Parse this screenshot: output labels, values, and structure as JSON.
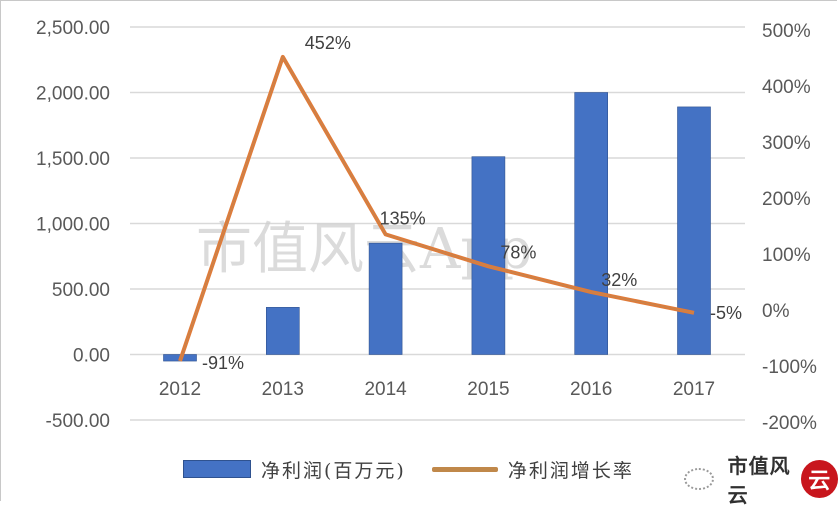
{
  "chart_data": {
    "type": "bar+line",
    "title": "",
    "categories": [
      "2012",
      "2013",
      "2014",
      "2015",
      "2016",
      "2017"
    ],
    "series": [
      {
        "name": "净利润(百万元)",
        "type": "bar",
        "axis": "left",
        "color": "#4472c4",
        "values": [
          -50,
          360,
          850,
          1510,
          2000,
          1890
        ]
      },
      {
        "name": "净利润增长率",
        "type": "line",
        "axis": "right",
        "color": "#e07b39",
        "values": [
          -91,
          452,
          135,
          78,
          32,
          -5
        ],
        "data_labels": [
          "-91%",
          "452%",
          "135%",
          "78%",
          "32%",
          "-5%"
        ]
      }
    ],
    "left_axis": {
      "ylim": [
        -500,
        2500
      ],
      "ticks": [
        -500,
        0,
        500,
        1000,
        1500,
        2000,
        2500
      ],
      "tick_labels": [
        "-500.00",
        "0.00",
        "500.00",
        "1,000.00",
        "1,500.00",
        "2,000.00",
        "2,500.00"
      ]
    },
    "right_axis": {
      "ylim": [
        -200,
        500
      ],
      "ticks": [
        -200,
        -100,
        0,
        100,
        200,
        300,
        400,
        500
      ],
      "tick_labels": [
        "-200%",
        "-100%",
        "0%",
        "100%",
        "200%",
        "300%",
        "400%",
        "500%"
      ]
    },
    "xlabel": "",
    "ylabel": "",
    "grid": true,
    "legend_position": "bottom"
  },
  "legend": {
    "bar_label": "净利润(百万元)",
    "line_label": "净利润增长率"
  },
  "watermark": "市值风云App",
  "brand": {
    "name": "市值风云",
    "seal": "云"
  }
}
